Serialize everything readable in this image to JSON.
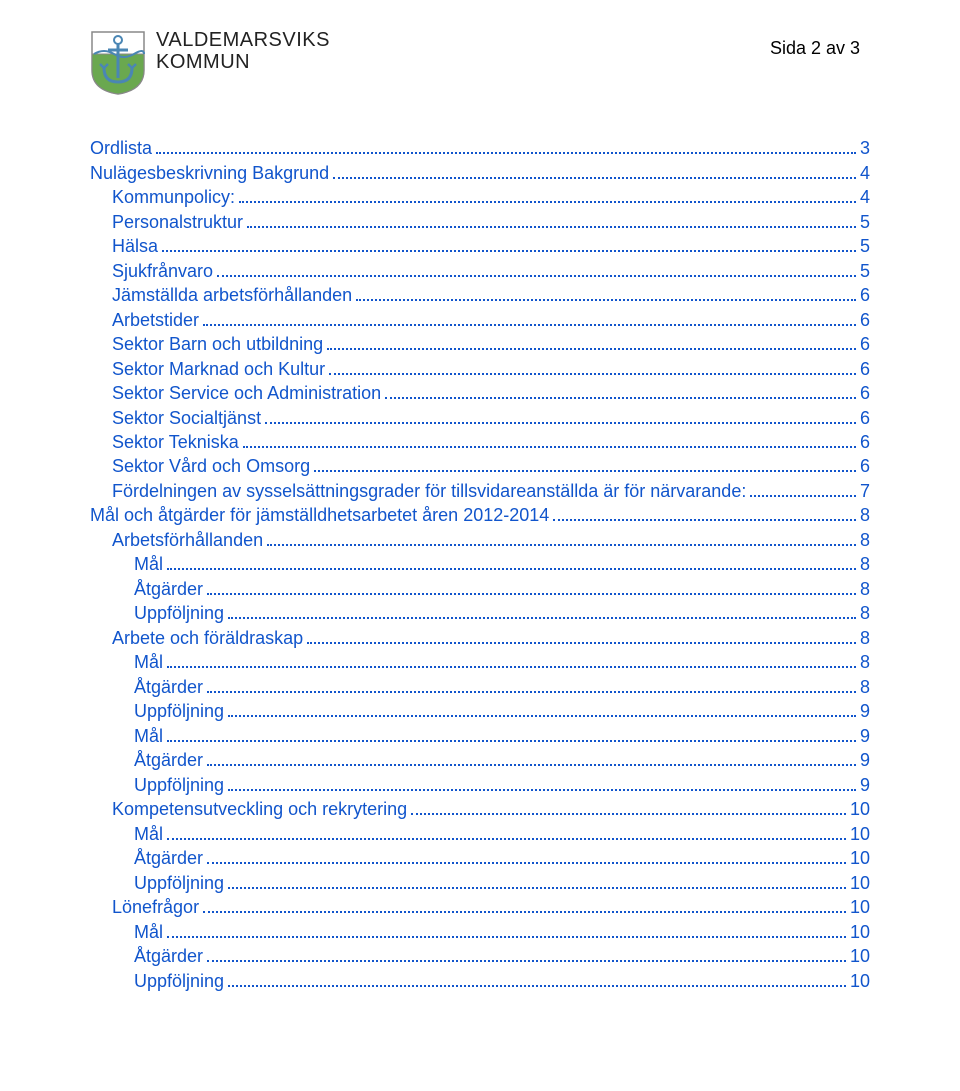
{
  "header": {
    "logo": {
      "line1": "VALDEMARSVIKS",
      "line2": "KOMMUN",
      "crest_colors": {
        "shield_top": "#ffffff",
        "shield_bottom": "#6aa84f",
        "anchor": "#4a86b4",
        "outline": "#888888"
      }
    },
    "page_indicator": "Sida 2 av 3"
  },
  "link_color": "#1155cc",
  "text_color": "#000000",
  "background_color": "#ffffff",
  "font_family": "Arial",
  "toc_font_size_pt": 13,
  "toc": [
    {
      "label": "Ordlista",
      "page": "3",
      "level": 0
    },
    {
      "label": "Nulägesbeskrivning Bakgrund",
      "page": "4",
      "level": 0
    },
    {
      "label": "Kommunpolicy:",
      "page": "4",
      "level": 1
    },
    {
      "label": "Personalstruktur",
      "page": "5",
      "level": 1
    },
    {
      "label": "Hälsa",
      "page": "5",
      "level": 1
    },
    {
      "label": "Sjukfrånvaro",
      "page": "5",
      "level": 1
    },
    {
      "label": "Jämställda arbetsförhållanden",
      "page": "6",
      "level": 1
    },
    {
      "label": "Arbetstider",
      "page": "6",
      "level": 1
    },
    {
      "label": "Sektor Barn och utbildning",
      "page": "6",
      "level": 1
    },
    {
      "label": "Sektor Marknad och Kultur",
      "page": "6",
      "level": 1
    },
    {
      "label": "Sektor Service och Administration",
      "page": "6",
      "level": 1
    },
    {
      "label": "Sektor Socialtjänst",
      "page": "6",
      "level": 1
    },
    {
      "label": "Sektor Tekniska",
      "page": "6",
      "level": 1
    },
    {
      "label": "Sektor Vård och Omsorg",
      "page": "6",
      "level": 1
    },
    {
      "label": "Fördelningen av sysselsättningsgrader för tillsvidareanställda är för närvarande:",
      "page": "7",
      "level": 1
    },
    {
      "label": "Mål och åtgärder för jämställdhetsarbetet åren 2012-2014",
      "page": "8",
      "level": 0
    },
    {
      "label": "Arbetsförhållanden",
      "page": "8",
      "level": 1
    },
    {
      "label": "Mål",
      "page": "8",
      "level": 2
    },
    {
      "label": "Åtgärder",
      "page": "8",
      "level": 2
    },
    {
      "label": "Uppföljning",
      "page": "8",
      "level": 2
    },
    {
      "label": "Arbete och föräldraskap",
      "page": "8",
      "level": 1
    },
    {
      "label": "Mål",
      "page": "8",
      "level": 2
    },
    {
      "label": "Åtgärder",
      "page": "8",
      "level": 2
    },
    {
      "label": "Uppföljning",
      "page": "9",
      "level": 2
    },
    {
      "label": "Mål",
      "page": "9",
      "level": 2
    },
    {
      "label": "Åtgärder",
      "page": "9",
      "level": 2
    },
    {
      "label": "Uppföljning",
      "page": "9",
      "level": 2
    },
    {
      "label": "Kompetensutveckling och rekrytering",
      "page": "10",
      "level": 1
    },
    {
      "label": "Mål",
      "page": "10",
      "level": 2
    },
    {
      "label": "Åtgärder",
      "page": "10",
      "level": 2
    },
    {
      "label": "Uppföljning",
      "page": "10",
      "level": 2
    },
    {
      "label": "Lönefrågor",
      "page": "10",
      "level": 1
    },
    {
      "label": "Mål",
      "page": "10",
      "level": 2
    },
    {
      "label": "Åtgärder",
      "page": "10",
      "level": 2
    },
    {
      "label": "Uppföljning",
      "page": "10",
      "level": 2
    }
  ]
}
